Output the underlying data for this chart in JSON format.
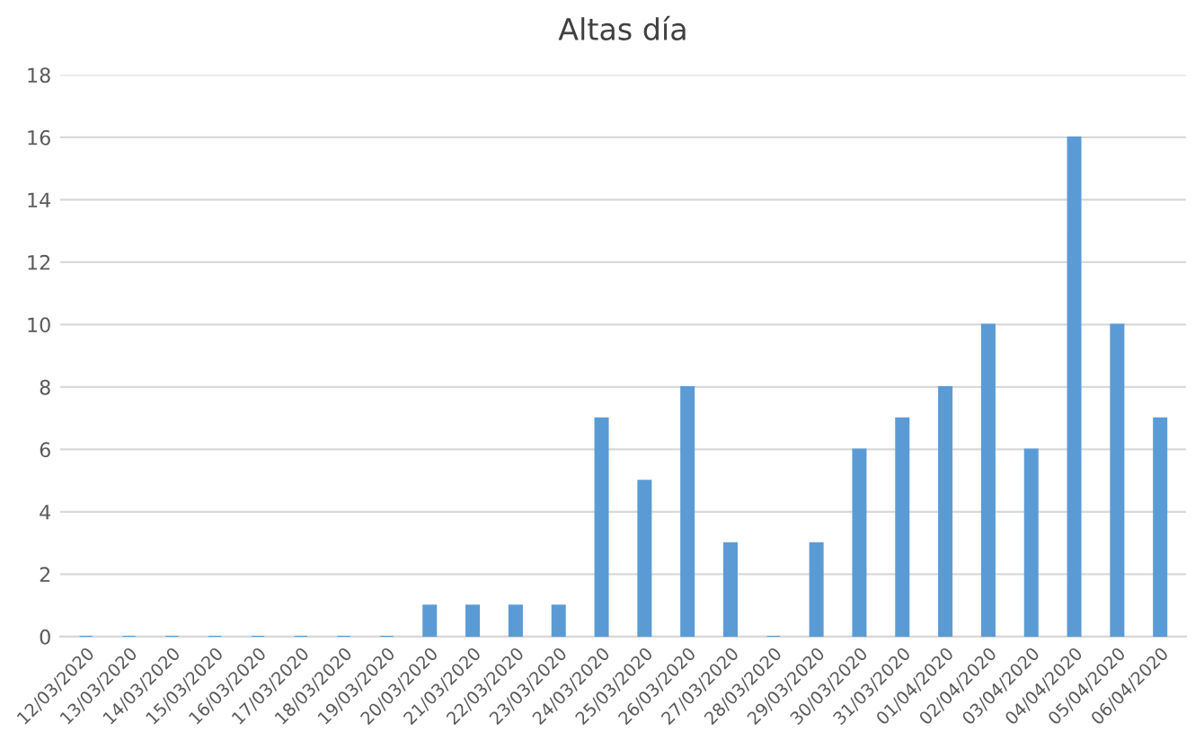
{
  "chart_data": {
    "type": "bar",
    "title": "Altas día",
    "categories": [
      "12/03/2020",
      "13/03/2020",
      "14/03/2020",
      "15/03/2020",
      "16/03/2020",
      "17/03/2020",
      "18/03/2020",
      "19/03/2020",
      "20/03/2020",
      "21/03/2020",
      "22/03/2020",
      "23/03/2020",
      "24/03/2020",
      "25/03/2020",
      "26/03/2020",
      "27/03/2020",
      "28/03/2020",
      "29/03/2020",
      "30/03/2020",
      "31/03/2020",
      "01/04/2020",
      "02/04/2020",
      "03/04/2020",
      "04/04/2020",
      "05/04/2020",
      "06/04/2020"
    ],
    "values": [
      0,
      0,
      0,
      0,
      0,
      0,
      0,
      0,
      1,
      1,
      1,
      1,
      7,
      5,
      8,
      3,
      0,
      3,
      6,
      7,
      8,
      10,
      6,
      16,
      10,
      7
    ],
    "color": "#5b9bd5",
    "ylim": [
      0,
      18
    ],
    "yticks": [
      0,
      2,
      4,
      6,
      8,
      10,
      12,
      14,
      16,
      18
    ],
    "grid": "y",
    "legend": false
  }
}
